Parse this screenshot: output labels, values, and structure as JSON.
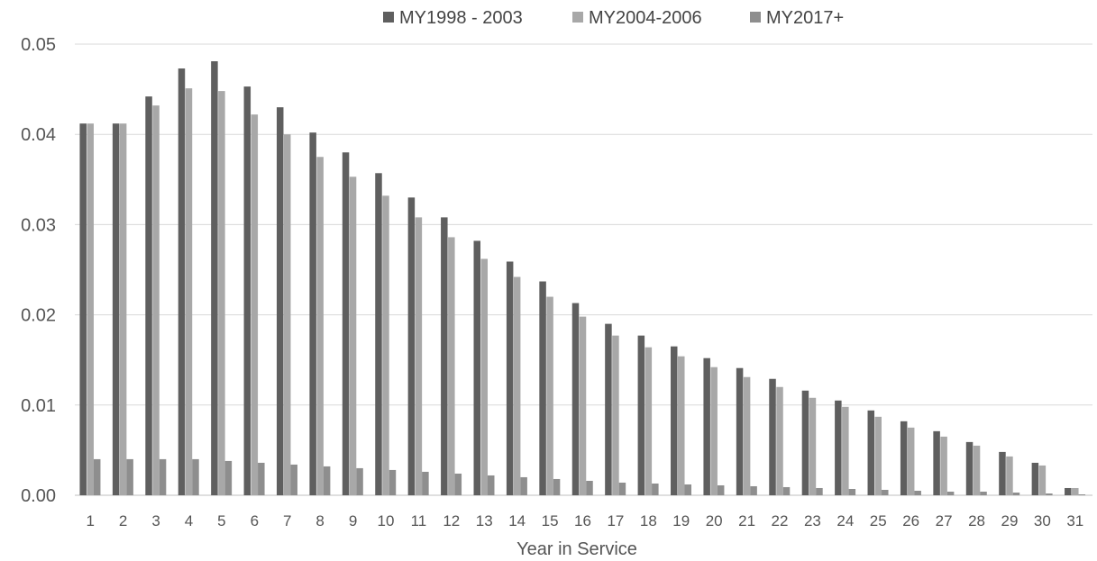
{
  "chart_data": {
    "type": "bar",
    "title": "",
    "xlabel": "Year in Service",
    "ylabel": "",
    "ylim": [
      0,
      0.05
    ],
    "yticks": [
      "0.00",
      "0.01",
      "0.02",
      "0.03",
      "0.04",
      "0.05"
    ],
    "grid": true,
    "legend_position": "top-center",
    "categories": [
      "1",
      "2",
      "3",
      "4",
      "5",
      "6",
      "7",
      "8",
      "9",
      "10",
      "11",
      "12",
      "13",
      "14",
      "15",
      "16",
      "17",
      "18",
      "19",
      "20",
      "21",
      "22",
      "23",
      "24",
      "25",
      "26",
      "27",
      "28",
      "29",
      "30",
      "31"
    ],
    "series": [
      {
        "name": "MY1998 - 2003",
        "color": "#5f5f5f",
        "values": [
          0.0412,
          0.0412,
          0.0442,
          0.0473,
          0.0481,
          0.0453,
          0.043,
          0.0402,
          0.038,
          0.0357,
          0.033,
          0.0308,
          0.0282,
          0.0259,
          0.0237,
          0.0213,
          0.019,
          0.0177,
          0.0165,
          0.0152,
          0.0141,
          0.0129,
          0.0116,
          0.0105,
          0.0094,
          0.0082,
          0.0071,
          0.0059,
          0.0048,
          0.0036,
          0.0008
        ]
      },
      {
        "name": "MY2004-2006",
        "color": "#a8a8a8",
        "values": [
          0.0412,
          0.0412,
          0.0432,
          0.0451,
          0.0448,
          0.0422,
          0.04,
          0.0375,
          0.0353,
          0.0332,
          0.0308,
          0.0286,
          0.0262,
          0.0242,
          0.022,
          0.0198,
          0.0177,
          0.0164,
          0.0154,
          0.0142,
          0.0131,
          0.012,
          0.0108,
          0.0098,
          0.0087,
          0.0075,
          0.0065,
          0.0055,
          0.0043,
          0.0033,
          0.0008
        ]
      },
      {
        "name": "MY2017+",
        "color": "#8e8e8e",
        "values": [
          0.004,
          0.004,
          0.004,
          0.004,
          0.0038,
          0.0036,
          0.0034,
          0.0032,
          0.003,
          0.0028,
          0.0026,
          0.0024,
          0.0022,
          0.002,
          0.0018,
          0.0016,
          0.0014,
          0.0013,
          0.0012,
          0.0011,
          0.001,
          0.0009,
          0.0008,
          0.0007,
          0.0006,
          0.0005,
          0.0004,
          0.0004,
          0.0003,
          0.0002,
          0.0001
        ]
      }
    ]
  }
}
